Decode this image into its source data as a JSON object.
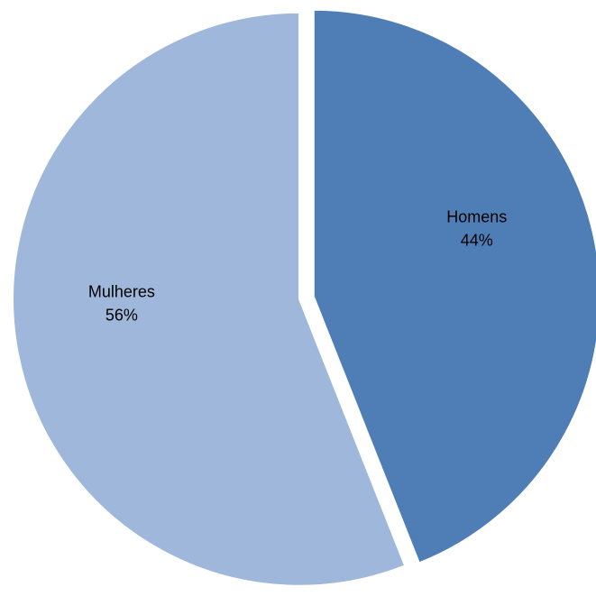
{
  "chart_data": {
    "type": "pie",
    "title": "",
    "slices": [
      {
        "name": "Homens",
        "value": 44,
        "label": "44%",
        "color": "#4f7db5"
      },
      {
        "name": "Mulheres",
        "value": 56,
        "label": "56%",
        "color": "#9fb7db"
      }
    ],
    "start_angle": "12 o'clock",
    "direction": "clockwise",
    "exploded": true,
    "legend": "none"
  }
}
